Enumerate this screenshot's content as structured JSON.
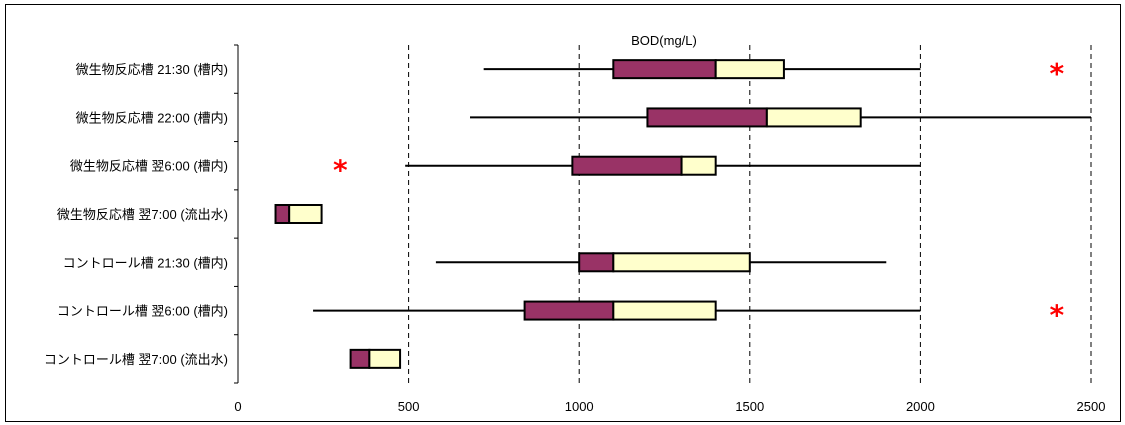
{
  "chart_data": {
    "type": "boxplot",
    "title": "BOD(mg/L)",
    "xlabel": "",
    "ylabel": "",
    "xlim": [
      0,
      2500
    ],
    "x_ticks": [
      0,
      500,
      1000,
      1500,
      2000,
      2500
    ],
    "x_tick_labels": [
      "0",
      "500",
      "1000",
      "1500",
      "2000",
      "2500"
    ],
    "grid": "vertical dashed",
    "colors": {
      "lower_box": "#993366",
      "upper_box": "#ffffcc",
      "outlier": "#ff0000",
      "line": "#000000"
    },
    "categories": [
      "微生物反応槽 21:30 (槽内)",
      "微生物反応槽 22:00 (槽内)",
      "微生物反応槽 翌6:00 (槽内)",
      "微生物反応槽 翌7:00 (流出水)",
      "コントロール槽 21:30 (槽内)",
      "コントロール槽 翌6:00 (槽内)",
      "コントロール槽 翌7:00 (流出水)"
    ],
    "boxes": [
      {
        "min": 720,
        "q1": 1100,
        "median": 1400,
        "q3": 1600,
        "max": 2000,
        "outliers": [
          2400
        ]
      },
      {
        "min": 680,
        "q1": 1200,
        "median": 1550,
        "q3": 1825,
        "max": 2500,
        "outliers": []
      },
      {
        "min": 490,
        "q1": 980,
        "median": 1300,
        "q3": 1400,
        "max": 2000,
        "outliers": [
          300
        ]
      },
      {
        "min": 110,
        "q1": 110,
        "median": 150,
        "q3": 245,
        "max": 245,
        "outliers": []
      },
      {
        "min": 580,
        "q1": 1000,
        "median": 1100,
        "q3": 1500,
        "max": 1900,
        "outliers": []
      },
      {
        "min": 220,
        "q1": 840,
        "median": 1100,
        "q3": 1400,
        "max": 2000,
        "outliers": [
          2400
        ]
      },
      {
        "min": 330,
        "q1": 330,
        "median": 385,
        "q3": 475,
        "max": 475,
        "outliers": []
      }
    ]
  }
}
